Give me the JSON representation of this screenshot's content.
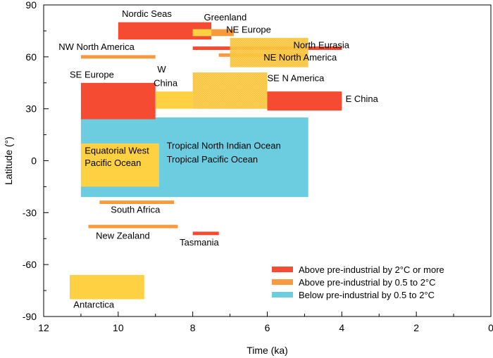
{
  "chart_data": {
    "type": "range-bar",
    "title": "",
    "xlabel": "Time (ka)",
    "ylabel": "Latitude (°)",
    "xlim": [
      12,
      0
    ],
    "ylim": [
      -90,
      90
    ],
    "xticks": [
      "12",
      "10",
      "8",
      "6",
      "4",
      "2",
      "0"
    ],
    "xtick_values": [
      12,
      10,
      8,
      6,
      4,
      2,
      0
    ],
    "yticks": [
      "90",
      "60",
      "30",
      "0",
      "-30",
      "-60",
      "-90"
    ],
    "ytick_values": [
      90,
      60,
      30,
      0,
      -30,
      -60,
      -90
    ],
    "colors": {
      "red": "#f44b32",
      "orange": "#f79a3e",
      "yellow": "#fdd142",
      "blue": "#6ccde0",
      "yellow_dot": "#f3a93b"
    },
    "legend": [
      {
        "label": "Above pre-industrial by 2°C or more",
        "color": "red"
      },
      {
        "label": "Above pre-industrial by 0.5 to 2°C",
        "color": "orange"
      },
      {
        "label": "Below pre-industrial by 0.5 to 2°C",
        "color": "blue"
      }
    ],
    "series": [
      {
        "name": "tropical",
        "color": "blue",
        "t_start": 11.0,
        "t_end": 4.9,
        "lat_min": -21,
        "lat_max": 25
      },
      {
        "name": "equatorial",
        "color": "yellow",
        "t_start": 11.0,
        "t_end": 8.9,
        "lat_min": -15,
        "lat_max": 10
      },
      {
        "name": "se-europe",
        "color": "red",
        "t_start": 11.0,
        "t_end": 9.0,
        "lat_min": 24,
        "lat_max": 45
      },
      {
        "name": "w-china",
        "color": "yellow",
        "t_start": 9.0,
        "t_end": 8.0,
        "lat_min": 30,
        "lat_max": 40
      },
      {
        "name": "e-china",
        "color": "red",
        "t_start": 6.0,
        "t_end": 4.0,
        "lat_min": 29,
        "lat_max": 40
      },
      {
        "name": "se-n-america",
        "color": "yellow",
        "dotted": true,
        "t_start": 8.0,
        "t_end": 6.0,
        "lat_min": 30,
        "lat_max": 51
      },
      {
        "name": "nordic-seas",
        "color": "red",
        "t_start": 10.0,
        "t_end": 7.5,
        "lat_min": 70,
        "lat_max": 80
      },
      {
        "name": "ne-europe",
        "color": "orange",
        "t_start": 8.0,
        "t_end": 6.9,
        "lat_min": 72,
        "lat_max": 76
      },
      {
        "name": "greenland",
        "color": "yellow",
        "t_start": 8.0,
        "t_end": 7.5,
        "lat_min": 72,
        "lat_max": 76
      },
      {
        "name": "north-eurasia",
        "color": "red",
        "t_start": 8.0,
        "t_end": 4.0,
        "lat_min": 64,
        "lat_max": 66
      },
      {
        "name": "ne-north-america-line",
        "color": "orange",
        "t_start": 7.3,
        "t_end": 5.0,
        "lat_min": 60,
        "lat_max": 62
      },
      {
        "name": "ne-north-america-box",
        "color": "yellow",
        "dotted": true,
        "t_start": 7.0,
        "t_end": 4.9,
        "lat_min": 54,
        "lat_max": 71
      },
      {
        "name": "nw-north-america",
        "color": "orange",
        "t_start": 11.0,
        "t_end": 9.0,
        "lat_min": 59,
        "lat_max": 61
      },
      {
        "name": "south-africa",
        "color": "orange",
        "t_start": 10.5,
        "t_end": 8.5,
        "lat_min": -25,
        "lat_max": -23
      },
      {
        "name": "new-zealand",
        "color": "orange",
        "t_start": 10.8,
        "t_end": 8.4,
        "lat_min": -39,
        "lat_max": -37
      },
      {
        "name": "tasmania",
        "color": "red",
        "t_start": 8.0,
        "t_end": 7.3,
        "lat_min": -43,
        "lat_max": -41
      },
      {
        "name": "antarctica",
        "color": "yellow",
        "t_start": 11.3,
        "t_end": 9.3,
        "lat_min": -80,
        "lat_max": -66
      }
    ],
    "annotations": [
      {
        "text": "Nordic Seas",
        "t": 9.9,
        "lat": 83
      },
      {
        "text": "Greenland",
        "t": 7.7,
        "lat": 81
      },
      {
        "text": "NE Europe",
        "t": 7.1,
        "lat": 74
      },
      {
        "text": "North Eurasia",
        "t": 5.3,
        "lat": 65
      },
      {
        "text": "NW North America",
        "t": 11.6,
        "lat": 64
      },
      {
        "text": "NE North America",
        "t": 6.1,
        "lat": 58
      },
      {
        "text": "SE Europe",
        "t": 11.3,
        "lat": 48
      },
      {
        "text": "W",
        "t": 8.95,
        "lat": 51
      },
      {
        "text": "China",
        "t": 9.05,
        "lat": 43
      },
      {
        "text": "SE N America",
        "t": 6.0,
        "lat": 46
      },
      {
        "text": "E China",
        "t": 3.9,
        "lat": 34
      },
      {
        "text": "Equatorial West",
        "t": 10.9,
        "lat": 4
      },
      {
        "text": "Pacific Ocean",
        "t": 10.9,
        "lat": -3
      },
      {
        "text": "Tropical North Indian Ocean",
        "t": 8.7,
        "lat": 7
      },
      {
        "text": "Tropical Pacific Ocean",
        "t": 8.7,
        "lat": -1
      },
      {
        "text": "South Africa",
        "t": 10.2,
        "lat": -30
      },
      {
        "text": "New Zealand",
        "t": 10.6,
        "lat": -45
      },
      {
        "text": "Tasmania",
        "t": 8.35,
        "lat": -49
      },
      {
        "text": "Antarctica",
        "t": 11.2,
        "lat": -85
      }
    ]
  }
}
